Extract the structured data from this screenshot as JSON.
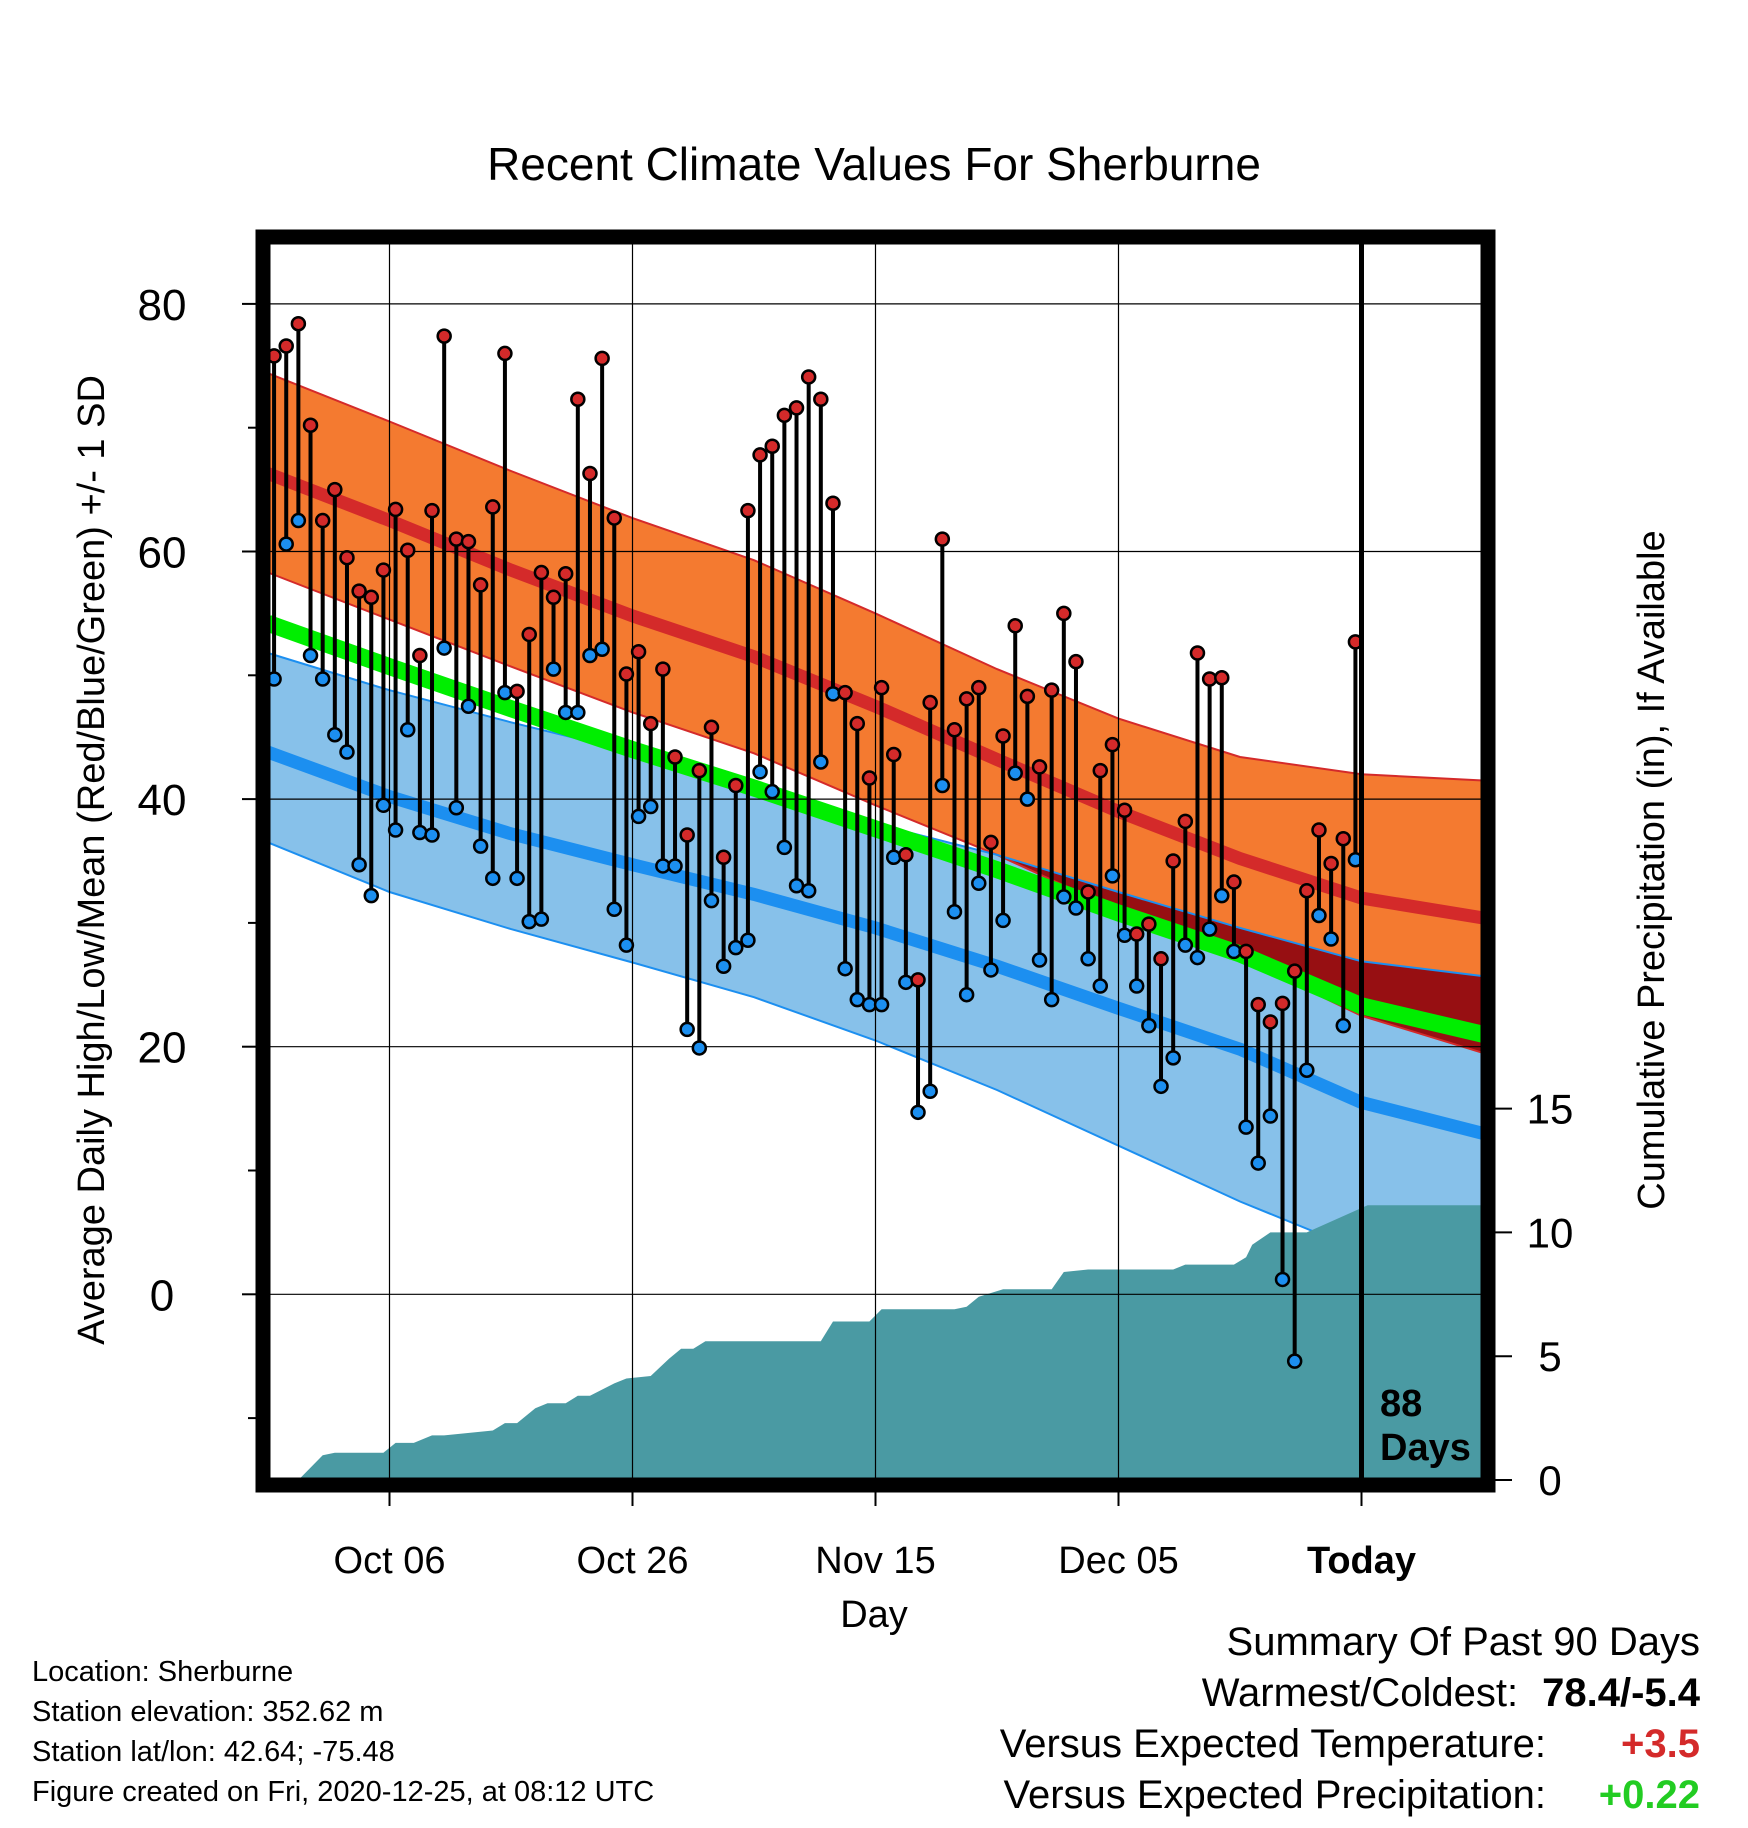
{
  "chart_data": {
    "type": "line",
    "title": "Recent Climate Values For Sherburne",
    "xlabel": "Day",
    "ylabel_left": "Average Daily High/Low/Mean (Red/Blue/Green) +/- 1 SD",
    "ylabel_right": "Cumulative Precipitation (in), If Available",
    "x_tick_labels": [
      "Oct 06",
      "Oct 26",
      "Nov 15",
      "Dec 05",
      "Today"
    ],
    "x_tick_days": [
      10,
      30,
      50,
      70,
      90
    ],
    "xlim": [
      0,
      100
    ],
    "left_y": {
      "range": [
        -15,
        85
      ],
      "ticks": [
        0,
        20,
        40,
        60,
        80
      ]
    },
    "right_y": {
      "range": [
        0,
        50
      ],
      "ticks": [
        0,
        5,
        10,
        15
      ]
    },
    "today_day": 90,
    "today_label_line1": "88",
    "today_label_line2": "Days",
    "grid": true,
    "normals": {
      "days": [
        0,
        10,
        20,
        30,
        40,
        50,
        60,
        70,
        80,
        90,
        100
      ],
      "high_mean": [
        66.3,
        62.5,
        58.5,
        54.8,
        51.5,
        47.5,
        43.2,
        39.0,
        35.2,
        32.0,
        30.4
      ],
      "high_plus_sd": [
        74.4,
        70.5,
        66.5,
        62.7,
        59.3,
        55.0,
        50.5,
        46.5,
        43.4,
        42.0,
        41.5
      ],
      "high_minus_sd": [
        58.3,
        54.5,
        50.7,
        47.0,
        43.7,
        39.5,
        35.5,
        31.0,
        27.2,
        22.5,
        19.5
      ],
      "mean": [
        54.2,
        50.7,
        47.3,
        44.0,
        40.9,
        37.6,
        34.3,
        30.8,
        27.5,
        23.3,
        21.0
      ],
      "low_mean": [
        43.8,
        40.2,
        37.2,
        34.7,
        32.3,
        29.6,
        26.5,
        23.1,
        19.8,
        15.5,
        13.0
      ],
      "low_plus_sd": [
        51.8,
        48.8,
        46.2,
        43.8,
        41.0,
        38.0,
        35.5,
        32.5,
        29.6,
        26.9,
        25.7
      ],
      "low_minus_sd": [
        36.5,
        32.5,
        29.5,
        26.8,
        24.0,
        20.5,
        16.5,
        12.0,
        7.5,
        3.5,
        1.0
      ]
    },
    "observed": {
      "high": [
        75.8,
        76.6,
        78.4,
        70.2,
        62.5,
        65.0,
        59.5,
        56.8,
        56.3,
        58.5,
        63.4,
        60.1,
        51.6,
        63.3,
        77.4,
        61.0,
        60.8,
        57.3,
        63.6,
        76.0,
        48.7,
        53.3,
        58.3,
        56.3,
        58.2,
        72.3,
        66.3,
        75.6,
        62.7,
        50.1,
        51.9,
        46.1,
        50.5,
        43.4,
        37.1,
        42.3,
        45.8,
        35.3,
        41.1,
        63.3,
        67.8,
        68.5,
        71.0,
        71.6,
        74.1,
        72.3,
        63.9,
        48.6,
        46.1,
        41.7,
        49.0,
        43.6,
        35.5,
        25.4,
        47.8,
        61.0,
        45.6,
        48.1,
        49.0,
        36.5,
        45.1,
        54.0,
        48.3,
        42.6,
        48.8,
        55.0,
        51.1,
        32.5,
        42.3,
        44.4,
        39.1,
        29.1,
        29.9,
        27.1,
        35.0,
        38.2,
        51.8,
        49.7,
        49.8,
        33.3,
        27.7,
        23.4,
        22.0,
        23.5,
        26.1,
        32.6,
        37.5,
        34.8,
        36.8,
        52.7
      ],
      "low": [
        49.7,
        60.6,
        62.5,
        51.6,
        49.7,
        45.2,
        43.8,
        34.7,
        32.2,
        39.5,
        37.5,
        45.6,
        37.3,
        37.1,
        52.2,
        39.3,
        47.5,
        36.2,
        33.6,
        48.6,
        33.6,
        30.1,
        30.3,
        50.5,
        47.0,
        47.0,
        51.6,
        52.1,
        31.1,
        28.2,
        38.6,
        39.4,
        34.6,
        34.6,
        21.4,
        19.9,
        31.8,
        26.5,
        28.0,
        28.6,
        42.2,
        40.6,
        36.1,
        33.0,
        32.6,
        43.0,
        48.5,
        26.3,
        23.8,
        23.4,
        23.4,
        35.3,
        25.2,
        14.7,
        16.4,
        41.1,
        30.9,
        24.2,
        33.2,
        26.2,
        30.2,
        42.1,
        40.0,
        27.0,
        23.8,
        32.1,
        31.2,
        27.1,
        24.9,
        33.8,
        29.0,
        24.9,
        21.7,
        16.8,
        19.1,
        28.2,
        27.2,
        29.5,
        32.2,
        27.7,
        13.5,
        10.6,
        14.4,
        1.2,
        -5.4,
        18.1,
        30.6,
        28.7,
        21.7,
        35.1
      ]
    },
    "cumulative_precip": {
      "days": [
        0,
        2.5,
        4.5,
        5.5,
        9.5,
        10.5,
        12,
        13.5,
        14.5,
        18.5,
        19.5,
        20.5,
        22,
        23,
        24.5,
        25.5,
        26.5,
        28.5,
        29.5,
        31.5,
        33,
        34,
        35,
        36,
        38,
        45.5,
        46.5,
        49.5,
        50.5,
        54.5,
        56.5,
        57.5,
        58.5,
        60.5,
        62.5,
        64.5,
        65.5,
        67.5,
        74.5,
        75.5,
        79.5,
        80.5,
        81,
        82.5,
        83.5,
        84.5,
        85.5,
        90.5,
        91.5,
        100
      ],
      "values": [
        0,
        0,
        1.0,
        1.1,
        1.1,
        1.5,
        1.5,
        1.8,
        1.8,
        2.0,
        2.3,
        2.3,
        2.9,
        3.1,
        3.1,
        3.4,
        3.4,
        3.9,
        4.1,
        4.2,
        4.9,
        5.3,
        5.3,
        5.6,
        5.6,
        5.6,
        6.4,
        6.4,
        6.9,
        6.9,
        6.9,
        7.0,
        7.4,
        7.7,
        7.7,
        7.7,
        8.4,
        8.5,
        8.5,
        8.7,
        8.7,
        9.0,
        9.5,
        10.0,
        10.0,
        10.0,
        10.0,
        11.1,
        11.1,
        11.1
      ]
    },
    "colors": {
      "high_band": "#f47a30",
      "high_mean": "#d42a2a",
      "low_band": "#87c1ea",
      "low_mean": "#1c8ff0",
      "overlap": "#970f12",
      "mean": "#00ee00",
      "precip": "#4a9aa3",
      "high_marker": "#d42a2a",
      "low_marker": "#1c8ff0"
    }
  },
  "footer": {
    "location": "Location: Sherburne",
    "elevation": "Station elevation: 352.62 m",
    "latlon": "Station lat/lon: 42.64; -75.48",
    "created": "Figure created on Fri, 2020-12-25, at 08:12 UTC"
  },
  "summary": {
    "heading": "Summary Of Past 90 Days",
    "warm_cold_label": "Warmest/Coldest:",
    "warm_cold_value": "78.4/-5.4",
    "temp_label": "Versus Expected Temperature:",
    "temp_value": "+3.5",
    "temp_color": "#d42a2a",
    "precip_label": "Versus Expected Precipitation:",
    "precip_value": "+0.22",
    "precip_color": "#22cc22"
  }
}
